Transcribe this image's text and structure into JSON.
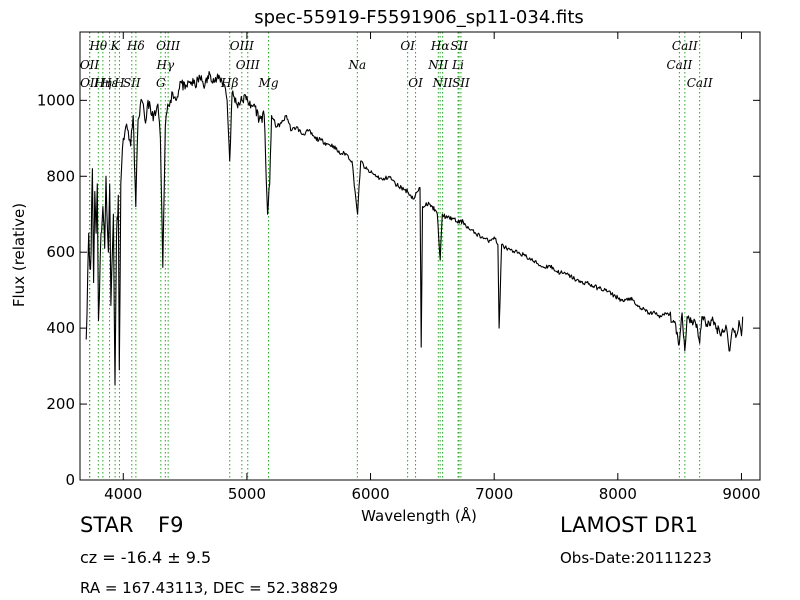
{
  "chart_data": {
    "type": "line",
    "title": "spec-55919-F5591906_sp11-034.fits",
    "xlabel": "Wavelength (Å)",
    "ylabel": "Flux (relative)",
    "xlim": [
      3650,
      9150
    ],
    "ylim": [
      0,
      1180
    ],
    "xticks": [
      4000,
      5000,
      6000,
      7000,
      8000,
      9000
    ],
    "yticks": [
      0,
      200,
      400,
      600,
      800,
      1000
    ],
    "grid": false,
    "line_color": "#000000",
    "marker_color": "#2ca02c",
    "spectrum_wavelength_range": [
      3700,
      9010
    ],
    "spectrum": [
      [
        3700,
        370
      ],
      [
        3720,
        650
      ],
      [
        3730,
        560
      ],
      [
        3740,
        600
      ],
      [
        3750,
        820
      ],
      [
        3760,
        520
      ],
      [
        3770,
        760
      ],
      [
        3780,
        650
      ],
      [
        3790,
        780
      ],
      [
        3800,
        420
      ],
      [
        3820,
        650
      ],
      [
        3835,
        720
      ],
      [
        3850,
        610
      ],
      [
        3860,
        800
      ],
      [
        3880,
        600
      ],
      [
        3890,
        780
      ],
      [
        3900,
        460
      ],
      [
        3920,
        700
      ],
      [
        3933,
        250
      ],
      [
        3945,
        640
      ],
      [
        3960,
        750
      ],
      [
        3968,
        290
      ],
      [
        3980,
        780
      ],
      [
        4000,
        900
      ],
      [
        4020,
        930
      ],
      [
        4040,
        920
      ],
      [
        4060,
        880
      ],
      [
        4080,
        960
      ],
      [
        4101,
        720
      ],
      [
        4120,
        950
      ],
      [
        4150,
        1000
      ],
      [
        4180,
        940
      ],
      [
        4200,
        1000
      ],
      [
        4230,
        960
      ],
      [
        4260,
        960
      ],
      [
        4280,
        990
      ],
      [
        4300,
        900
      ],
      [
        4320,
        560
      ],
      [
        4340,
        930
      ],
      [
        4360,
        990
      ],
      [
        4380,
        1000
      ],
      [
        4400,
        1020
      ],
      [
        4430,
        1000
      ],
      [
        4460,
        1050
      ],
      [
        4500,
        1030
      ],
      [
        4540,
        1050
      ],
      [
        4580,
        1040
      ],
      [
        4620,
        1060
      ],
      [
        4660,
        1040
      ],
      [
        4700,
        1070
      ],
      [
        4740,
        1050
      ],
      [
        4780,
        1060
      ],
      [
        4820,
        1040
      ],
      [
        4840,
        1000
      ],
      [
        4861,
        840
      ],
      [
        4880,
        1020
      ],
      [
        4920,
        990
      ],
      [
        4960,
        1000
      ],
      [
        5000,
        1010
      ],
      [
        5030,
        980
      ],
      [
        5060,
        990
      ],
      [
        5100,
        950
      ],
      [
        5140,
        960
      ],
      [
        5167,
        700
      ],
      [
        5184,
        780
      ],
      [
        5200,
        960
      ],
      [
        5240,
        930
      ],
      [
        5280,
        940
      ],
      [
        5320,
        960
      ],
      [
        5360,
        920
      ],
      [
        5400,
        930
      ],
      [
        5450,
        910
      ],
      [
        5500,
        920
      ],
      [
        5550,
        900
      ],
      [
        5600,
        895
      ],
      [
        5650,
        885
      ],
      [
        5700,
        880
      ],
      [
        5750,
        860
      ],
      [
        5800,
        860
      ],
      [
        5850,
        840
      ],
      [
        5875,
        760
      ],
      [
        5895,
        700
      ],
      [
        5920,
        840
      ],
      [
        5960,
        820
      ],
      [
        6000,
        810
      ],
      [
        6050,
        800
      ],
      [
        6100,
        790
      ],
      [
        6150,
        800
      ],
      [
        6200,
        780
      ],
      [
        6250,
        770
      ],
      [
        6300,
        760
      ],
      [
        6350,
        740
      ],
      [
        6380,
        760
      ],
      [
        6400,
        770
      ],
      [
        6410,
        350
      ],
      [
        6420,
        720
      ],
      [
        6450,
        730
      ],
      [
        6500,
        720
      ],
      [
        6540,
        700
      ],
      [
        6563,
        580
      ],
      [
        6580,
        700
      ],
      [
        6620,
        690
      ],
      [
        6660,
        690
      ],
      [
        6700,
        680
      ],
      [
        6750,
        680
      ],
      [
        6800,
        660
      ],
      [
        6850,
        650
      ],
      [
        6900,
        640
      ],
      [
        6950,
        630
      ],
      [
        7000,
        640
      ],
      [
        7030,
        620
      ],
      [
        7040,
        400
      ],
      [
        7060,
        620
      ],
      [
        7100,
        610
      ],
      [
        7150,
        600
      ],
      [
        7200,
        600
      ],
      [
        7250,
        590
      ],
      [
        7300,
        580
      ],
      [
        7350,
        570
      ],
      [
        7400,
        560
      ],
      [
        7450,
        565
      ],
      [
        7500,
        550
      ],
      [
        7550,
        545
      ],
      [
        7600,
        540
      ],
      [
        7650,
        530
      ],
      [
        7700,
        520
      ],
      [
        7750,
        520
      ],
      [
        7800,
        510
      ],
      [
        7850,
        505
      ],
      [
        7900,
        500
      ],
      [
        7950,
        490
      ],
      [
        8000,
        480
      ],
      [
        8050,
        470
      ],
      [
        8100,
        480
      ],
      [
        8150,
        460
      ],
      [
        8200,
        450
      ],
      [
        8250,
        440
      ],
      [
        8300,
        440
      ],
      [
        8350,
        430
      ],
      [
        8400,
        440
      ],
      [
        8450,
        420
      ],
      [
        8498,
        360
      ],
      [
        8520,
        440
      ],
      [
        8542,
        340
      ],
      [
        8560,
        430
      ],
      [
        8600,
        420
      ],
      [
        8640,
        410
      ],
      [
        8662,
        360
      ],
      [
        8680,
        430
      ],
      [
        8720,
        410
      ],
      [
        8760,
        420
      ],
      [
        8800,
        400
      ],
      [
        8840,
        390
      ],
      [
        8880,
        400
      ],
      [
        8900,
        340
      ],
      [
        8930,
        400
      ],
      [
        8960,
        380
      ],
      [
        8980,
        420
      ],
      [
        9000,
        380
      ],
      [
        9010,
        430
      ]
    ],
    "lines": [
      {
        "label": "Hθ",
        "x": 3798,
        "row": 1
      },
      {
        "label": "K",
        "x": 3934,
        "row": 1
      },
      {
        "label": "Hδ",
        "x": 4102,
        "row": 1
      },
      {
        "label": "OIII",
        "x": 4363,
        "row": 1
      },
      {
        "label": "OIII",
        "x": 4959,
        "row": 1
      },
      {
        "label": "OI",
        "x": 6300,
        "row": 1
      },
      {
        "label": "Hα",
        "x": 6563,
        "row": 1
      },
      {
        "label": "SII",
        "x": 6716,
        "row": 1
      },
      {
        "label": "CaII",
        "x": 8542,
        "row": 1
      },
      {
        "label": "OII",
        "x": 3727,
        "row": 2
      },
      {
        "label": "Hγ",
        "x": 4340,
        "row": 2
      },
      {
        "label": "OIII",
        "x": 5007,
        "row": 2
      },
      {
        "label": "Na",
        "x": 5893,
        "row": 2
      },
      {
        "label": "NII",
        "x": 6548,
        "row": 2
      },
      {
        "label": "Li",
        "x": 6708,
        "row": 2
      },
      {
        "label": "CaII",
        "x": 8498,
        "row": 2
      },
      {
        "label": "OII",
        "x": 3729,
        "row": 3
      },
      {
        "label": "Hη",
        "x": 3835,
        "row": 3
      },
      {
        "label": "Hε",
        "x": 3889,
        "row": 3
      },
      {
        "label": "SII",
        "x": 4069,
        "row": 3
      },
      {
        "label": "H",
        "x": 3969,
        "row": 3
      },
      {
        "label": "G",
        "x": 4304,
        "row": 3
      },
      {
        "label": "Hβ",
        "x": 4861,
        "row": 3
      },
      {
        "label": "Mg",
        "x": 5175,
        "row": 3
      },
      {
        "label": "OI",
        "x": 6364,
        "row": 3
      },
      {
        "label": "NII",
        "x": 6583,
        "row": 3
      },
      {
        "label": "SII",
        "x": 6731,
        "row": 3
      },
      {
        "label": "CaII",
        "x": 8662,
        "row": 3
      }
    ]
  },
  "info": {
    "object_class": "STAR",
    "subclass": "F9",
    "redshift": "cz = -16.4 ± 9.5",
    "coordinates": "RA = 167.43113, DEC = 52.38829",
    "survey": "LAMOST DR1",
    "obs_date": "Obs-Date:20111223"
  }
}
